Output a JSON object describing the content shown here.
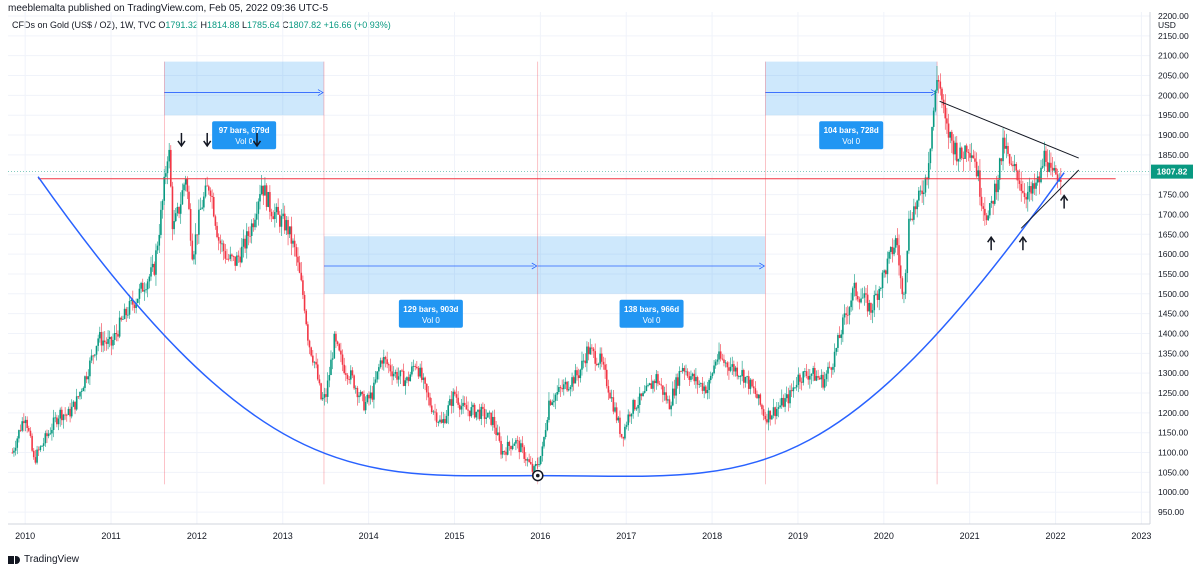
{
  "header": {
    "published": "meeblemalta published on TradingView.com, Feb 05, 2022 09:36 UTC-5",
    "symbol": "CFDs on Gold (US$ / OZ), 1W, TVC",
    "open_label": "O",
    "open": "1791.32",
    "high_label": "H",
    "high": "1814.88",
    "low_label": "L",
    "low": "1785.64",
    "close_label": "C",
    "close": "1807.82",
    "change": "+16.66 (+0.93%)"
  },
  "footer": {
    "brand": "TradingView"
  },
  "chart_data": {
    "type": "candlestick",
    "currency": "USD",
    "x_ticks": [
      "2010",
      "2011",
      "2012",
      "2013",
      "2014",
      "2015",
      "2016",
      "2017",
      "2018",
      "2019",
      "2020",
      "2021",
      "2022",
      "2023"
    ],
    "y_ticks": [
      950,
      1000,
      1050,
      1100,
      1150,
      1200,
      1250,
      1300,
      1350,
      1400,
      1450,
      1500,
      1550,
      1600,
      1650,
      1700,
      1750,
      1800,
      1850,
      1900,
      1950,
      2000,
      2050,
      2100,
      2150,
      2200
    ],
    "ylim": [
      920,
      2210
    ],
    "xlim": [
      2009.8,
      2023.1
    ],
    "last_price": 1807.82,
    "last_price_label": "1807.82",
    "horizontal_level": 1790,
    "price_path": [
      [
        2009.85,
        1100
      ],
      [
        2010.0,
        1200
      ],
      [
        2010.1,
        1080
      ],
      [
        2010.25,
        1140
      ],
      [
        2010.4,
        1200
      ],
      [
        2010.5,
        1195
      ],
      [
        2010.6,
        1230
      ],
      [
        2010.75,
        1320
      ],
      [
        2010.85,
        1390
      ],
      [
        2011.0,
        1370
      ],
      [
        2011.1,
        1420
      ],
      [
        2011.2,
        1460
      ],
      [
        2011.3,
        1490
      ],
      [
        2011.4,
        1530
      ],
      [
        2011.5,
        1560
      ],
      [
        2011.6,
        1730
      ],
      [
        2011.67,
        1880
      ],
      [
        2011.72,
        1660
      ],
      [
        2011.8,
        1720
      ],
      [
        2011.87,
        1800
      ],
      [
        2011.95,
        1600
      ],
      [
        2012.05,
        1720
      ],
      [
        2012.15,
        1780
      ],
      [
        2012.25,
        1640
      ],
      [
        2012.35,
        1590
      ],
      [
        2012.45,
        1580
      ],
      [
        2012.55,
        1620
      ],
      [
        2012.65,
        1680
      ],
      [
        2012.75,
        1780
      ],
      [
        2012.85,
        1720
      ],
      [
        2012.95,
        1690
      ],
      [
        2013.05,
        1670
      ],
      [
        2013.15,
        1600
      ],
      [
        2013.25,
        1480
      ],
      [
        2013.3,
        1380
      ],
      [
        2013.38,
        1320
      ],
      [
        2013.45,
        1230
      ],
      [
        2013.5,
        1240
      ],
      [
        2013.6,
        1380
      ],
      [
        2013.7,
        1320
      ],
      [
        2013.8,
        1290
      ],
      [
        2013.95,
        1220
      ],
      [
        2014.05,
        1250
      ],
      [
        2014.15,
        1340
      ],
      [
        2014.3,
        1300
      ],
      [
        2014.45,
        1280
      ],
      [
        2014.55,
        1330
      ],
      [
        2014.7,
        1230
      ],
      [
        2014.85,
        1170
      ],
      [
        2015.0,
        1250
      ],
      [
        2015.1,
        1210
      ],
      [
        2015.3,
        1200
      ],
      [
        2015.45,
        1180
      ],
      [
        2015.55,
        1100
      ],
      [
        2015.7,
        1130
      ],
      [
        2015.8,
        1100
      ],
      [
        2015.92,
        1050
      ],
      [
        2016.02,
        1100
      ],
      [
        2016.1,
        1230
      ],
      [
        2016.3,
        1270
      ],
      [
        2016.45,
        1300
      ],
      [
        2016.55,
        1360
      ],
      [
        2016.7,
        1330
      ],
      [
        2016.8,
        1260
      ],
      [
        2016.95,
        1140
      ],
      [
        2017.05,
        1210
      ],
      [
        2017.2,
        1240
      ],
      [
        2017.35,
        1290
      ],
      [
        2017.5,
        1220
      ],
      [
        2017.65,
        1320
      ],
      [
        2017.8,
        1280
      ],
      [
        2017.95,
        1260
      ],
      [
        2018.05,
        1340
      ],
      [
        2018.2,
        1320
      ],
      [
        2018.35,
        1300
      ],
      [
        2018.5,
        1250
      ],
      [
        2018.62,
        1190
      ],
      [
        2018.75,
        1210
      ],
      [
        2018.9,
        1240
      ],
      [
        2019.0,
        1290
      ],
      [
        2019.15,
        1300
      ],
      [
        2019.3,
        1280
      ],
      [
        2019.42,
        1340
      ],
      [
        2019.52,
        1420
      ],
      [
        2019.65,
        1510
      ],
      [
        2019.75,
        1490
      ],
      [
        2019.85,
        1460
      ],
      [
        2019.95,
        1520
      ],
      [
        2020.05,
        1580
      ],
      [
        2020.15,
        1640
      ],
      [
        2020.22,
        1480
      ],
      [
        2020.3,
        1700
      ],
      [
        2020.4,
        1730
      ],
      [
        2020.5,
        1800
      ],
      [
        2020.58,
        1960
      ],
      [
        2020.63,
        2060
      ],
      [
        2020.72,
        1920
      ],
      [
        2020.8,
        1880
      ],
      [
        2020.9,
        1840
      ],
      [
        2020.97,
        1880
      ],
      [
        2021.05,
        1850
      ],
      [
        2021.15,
        1730
      ],
      [
        2021.22,
        1690
      ],
      [
        2021.32,
        1790
      ],
      [
        2021.4,
        1880
      ],
      [
        2021.48,
        1810
      ],
      [
        2021.55,
        1810
      ],
      [
        2021.62,
        1760
      ],
      [
        2021.72,
        1750
      ],
      [
        2021.82,
        1790
      ],
      [
        2021.88,
        1860
      ],
      [
        2021.95,
        1790
      ],
      [
        2022.0,
        1800
      ],
      [
        2022.08,
        1807.82
      ]
    ],
    "measurements": [
      {
        "label": "97 bars, 679d",
        "vol": "Vol 0",
        "x1": 2011.62,
        "x2": 2013.48,
        "y1": 1950,
        "y2": 2085,
        "arrow_y": 2007
      },
      {
        "label": "129 bars, 903d",
        "vol": "Vol 0",
        "x1": 2013.48,
        "x2": 2015.97,
        "y1": 1500,
        "y2": 1645,
        "arrow_y": 1570
      },
      {
        "label": "138 bars, 966d",
        "vol": "Vol 0",
        "x1": 2015.97,
        "x2": 2018.62,
        "y1": 1500,
        "y2": 1645,
        "arrow_y": 1570
      },
      {
        "label": "104 bars, 728d",
        "vol": "Vol 0",
        "x1": 2018.62,
        "x2": 2020.62,
        "y1": 1950,
        "y2": 2085,
        "arrow_y": 2007
      }
    ],
    "bowl_curve": {
      "start": [
        2010.15,
        1795
      ],
      "bottom": [
        2015.97,
        1042
      ],
      "end": [
        2022.1,
        1805
      ]
    },
    "triangle": {
      "upper": [
        [
          2020.65,
          1985
        ],
        [
          2022.27,
          1842
        ]
      ],
      "lower": [
        [
          2021.6,
          1665
        ],
        [
          2022.27,
          1812
        ]
      ]
    },
    "down_arrows_x": [
      2011.82,
      2012.12,
      2012.7
    ],
    "up_arrows": [
      [
        2021.25,
        1640
      ],
      [
        2021.62,
        1640
      ],
      [
        2022.1,
        1745
      ]
    ]
  }
}
